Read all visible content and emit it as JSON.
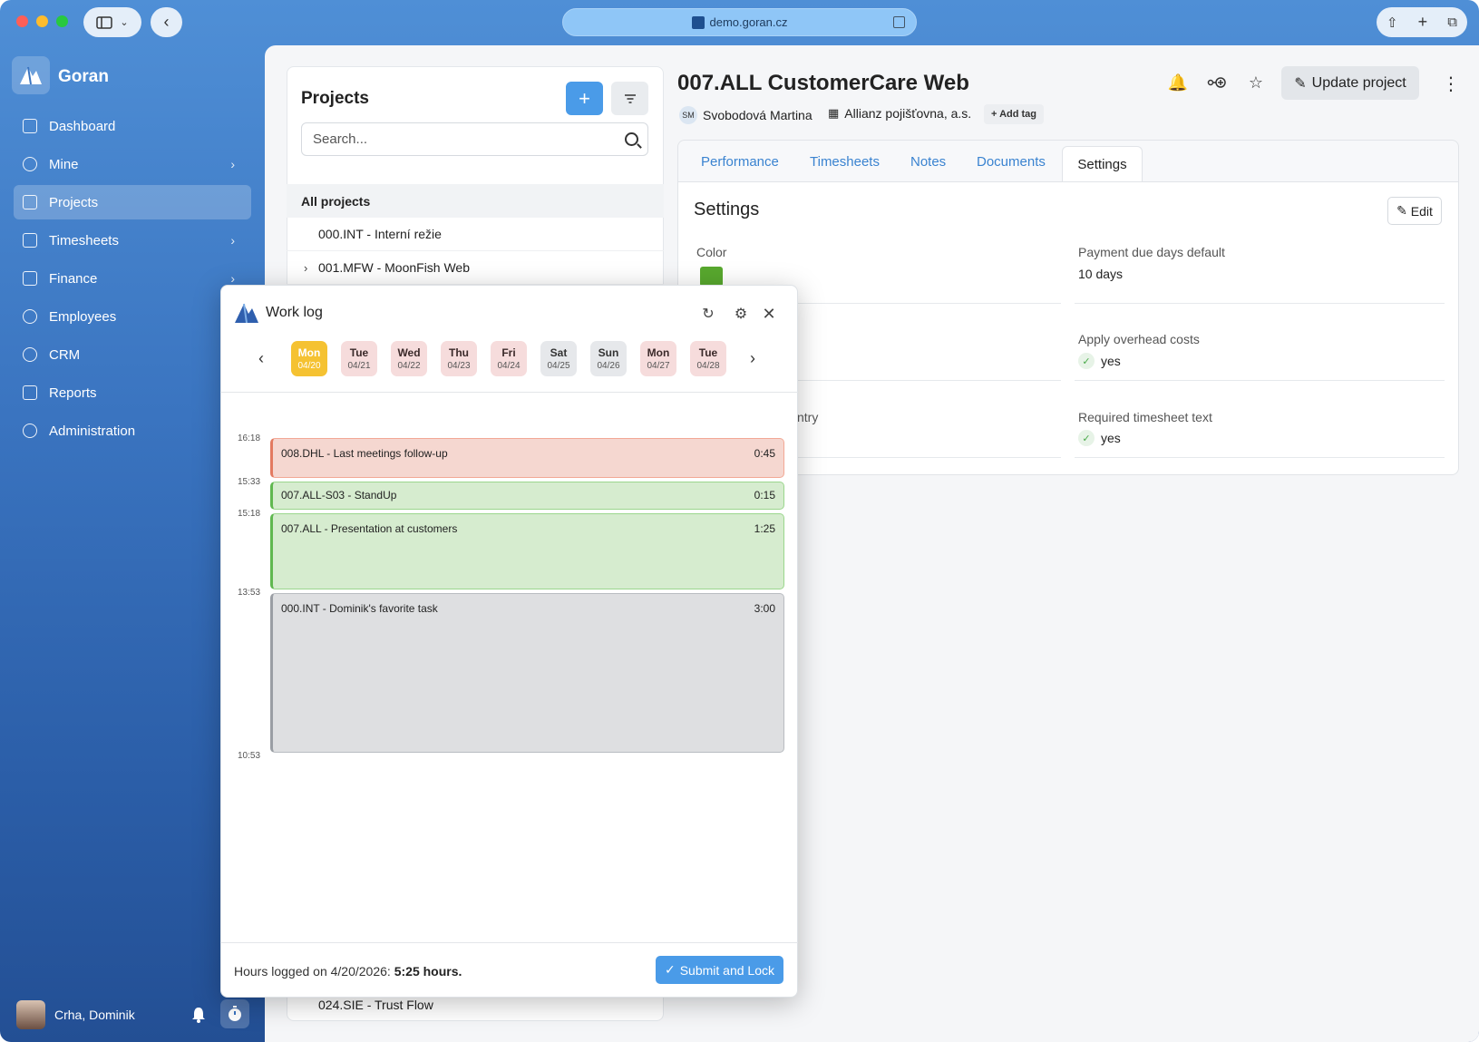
{
  "browser": {
    "url": "demo.goran.cz"
  },
  "sidebar": {
    "brand": "Goran",
    "items": [
      {
        "label": "Dashboard",
        "icon": "dashboard-icon",
        "chevron": false
      },
      {
        "label": "Mine",
        "icon": "user-circle-icon",
        "chevron": true
      },
      {
        "label": "Projects",
        "icon": "projects-icon",
        "chevron": false,
        "active": true
      },
      {
        "label": "Timesheets",
        "icon": "grid-icon",
        "chevron": true
      },
      {
        "label": "Finance",
        "icon": "money-icon",
        "chevron": true
      },
      {
        "label": "Employees",
        "icon": "people-icon",
        "chevron": false
      },
      {
        "label": "CRM",
        "icon": "globe-icon",
        "chevron": false
      },
      {
        "label": "Reports",
        "icon": "clipboard-icon",
        "chevron": false
      },
      {
        "label": "Administration",
        "icon": "gear-icon",
        "chevron": false
      }
    ],
    "user_name": "Crha, Dominik"
  },
  "projects": {
    "title": "Projects",
    "search_placeholder": "Search...",
    "all_label": "All projects",
    "items": [
      {
        "label": "000.INT - Interní režie",
        "expandable": false
      },
      {
        "label": "001.MFW - MoonFish Web",
        "expandable": true
      },
      {
        "label": "024.SIE - Trust Flow",
        "expandable": false
      }
    ]
  },
  "detail": {
    "title": "007.ALL CustomerCare Web",
    "owner_initials": "SM",
    "owner_name": "Svobodová Martina",
    "client": "Allianz pojišťovna, a.s.",
    "add_tag": "+ Add tag",
    "update_label": "Update project",
    "tabs": [
      "Performance",
      "Timesheets",
      "Notes",
      "Documents",
      "Settings"
    ],
    "active_tab": "Settings"
  },
  "settings": {
    "title": "Settings",
    "edit_label": "Edit",
    "color_label": "Color",
    "color_value": "#58a82e",
    "payment_label": "Payment due days default",
    "payment_value": "10 days",
    "overhead_label": "Apply overhead costs",
    "overhead_value": "yes",
    "partial_label": "ntry",
    "required_label": "Required timesheet text",
    "required_value": "yes"
  },
  "worklog": {
    "title": "Work log",
    "days": [
      {
        "name": "Mon",
        "date": "04/20",
        "style": "sel"
      },
      {
        "name": "Tue",
        "date": "04/21",
        "style": "pink"
      },
      {
        "name": "Wed",
        "date": "04/22",
        "style": "pink"
      },
      {
        "name": "Thu",
        "date": "04/23",
        "style": "pink"
      },
      {
        "name": "Fri",
        "date": "04/24",
        "style": "pink"
      },
      {
        "name": "Sat",
        "date": "04/25",
        "style": "grey"
      },
      {
        "name": "Sun",
        "date": "04/26",
        "style": "grey"
      },
      {
        "name": "Mon",
        "date": "04/27",
        "style": "pink"
      },
      {
        "name": "Tue",
        "date": "04/28",
        "style": "pink"
      }
    ],
    "time_labels": [
      "16:18",
      "15:33",
      "15:18",
      "13:53",
      "10:53"
    ],
    "entries": [
      {
        "text": "008.DHL - Last meetings follow-up",
        "duration": "0:45",
        "color": "red"
      },
      {
        "text": "007.ALL-S03 - StandUp",
        "duration": "0:15",
        "color": "green"
      },
      {
        "text": "007.ALL - Presentation at customers",
        "duration": "1:25",
        "color": "green"
      },
      {
        "text": "000.INT - Dominik's favorite task",
        "duration": "3:00",
        "color": "grey"
      }
    ],
    "hours_prefix": "Hours logged on 4/20/2026: ",
    "hours_value": "5:25 hours.",
    "submit_label": "Submit and Lock"
  }
}
